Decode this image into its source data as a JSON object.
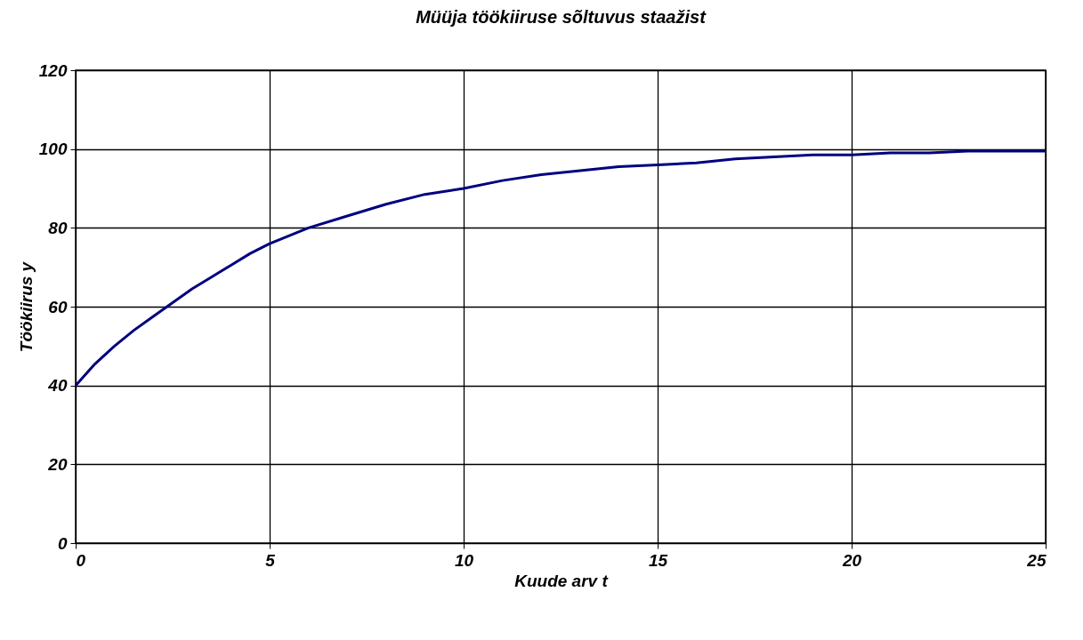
{
  "chart_data": {
    "type": "line",
    "title": "Müüja töökiiruse sõltuvus staažist",
    "xlabel": "Kuude arv t",
    "ylabel": "Töökiirus y",
    "x": [
      0,
      0.5,
      1,
      1.5,
      2,
      2.5,
      3,
      3.5,
      4,
      4.5,
      5,
      6,
      7,
      8,
      9,
      10,
      11,
      12,
      13,
      14,
      15,
      16,
      17,
      18,
      19,
      20,
      21,
      22,
      23,
      24,
      25
    ],
    "series": [
      {
        "color": "#000080",
        "values": [
          40,
          45.5,
          50,
          54,
          57.5,
          61,
          64.5,
          67.5,
          70.5,
          73.5,
          76,
          80,
          83,
          86,
          88.5,
          90,
          92,
          93.5,
          94.5,
          95.5,
          96,
          96.5,
          97.5,
          98,
          98.5,
          98.5,
          99,
          99,
          99.5,
          99.5,
          99.5
        ]
      }
    ],
    "xlim": [
      0,
      25
    ],
    "xticks": [
      0,
      5,
      10,
      15,
      20,
      25
    ],
    "ylim": [
      0,
      120
    ],
    "yticks": [
      0,
      20,
      40,
      60,
      80,
      100,
      120
    ],
    "grid": true
  }
}
